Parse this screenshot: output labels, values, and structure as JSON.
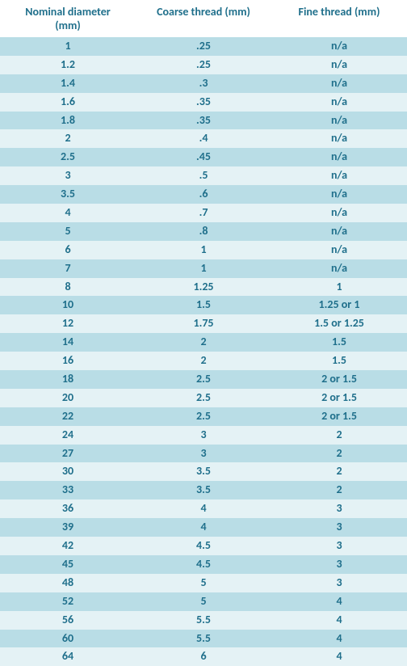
{
  "colors": {
    "text": "#1f6f8b",
    "band_dark": "#b9dde6",
    "band_light": "#e4f2f5",
    "background": "#ffffff"
  },
  "table": {
    "columns": [
      {
        "label_line1": "Nominal diameter",
        "label_line2": "(mm)"
      },
      {
        "label_line1": "Coarse thread (mm)",
        "label_line2": ""
      },
      {
        "label_line1": "Fine thread (mm)",
        "label_line2": ""
      }
    ],
    "rows": [
      {
        "nominal": "1",
        "coarse": ".25",
        "fine": "n/a"
      },
      {
        "nominal": "1.2",
        "coarse": ".25",
        "fine": "n/a"
      },
      {
        "nominal": "1.4",
        "coarse": ".3",
        "fine": "n/a"
      },
      {
        "nominal": "1.6",
        "coarse": ".35",
        "fine": "n/a"
      },
      {
        "nominal": "1.8",
        "coarse": ".35",
        "fine": "n/a"
      },
      {
        "nominal": "2",
        "coarse": ".4",
        "fine": "n/a"
      },
      {
        "nominal": "2.5",
        "coarse": ".45",
        "fine": "n/a"
      },
      {
        "nominal": "3",
        "coarse": ".5",
        "fine": "n/a"
      },
      {
        "nominal": "3.5",
        "coarse": ".6",
        "fine": "n/a"
      },
      {
        "nominal": "4",
        "coarse": ".7",
        "fine": "n/a"
      },
      {
        "nominal": "5",
        "coarse": ".8",
        "fine": "n/a"
      },
      {
        "nominal": "6",
        "coarse": "1",
        "fine": "n/a"
      },
      {
        "nominal": "7",
        "coarse": "1",
        "fine": "n/a"
      },
      {
        "nominal": "8",
        "coarse": "1.25",
        "fine": "1"
      },
      {
        "nominal": "10",
        "coarse": "1.5",
        "fine": "1.25 or 1"
      },
      {
        "nominal": "12",
        "coarse": "1.75",
        "fine": "1.5 or 1.25"
      },
      {
        "nominal": "14",
        "coarse": "2",
        "fine": "1.5"
      },
      {
        "nominal": "16",
        "coarse": "2",
        "fine": "1.5"
      },
      {
        "nominal": "18",
        "coarse": "2.5",
        "fine": "2 or 1.5"
      },
      {
        "nominal": "20",
        "coarse": "2.5",
        "fine": "2 or 1.5"
      },
      {
        "nominal": "22",
        "coarse": "2.5",
        "fine": "2 or 1.5"
      },
      {
        "nominal": "24",
        "coarse": "3",
        "fine": "2"
      },
      {
        "nominal": "27",
        "coarse": "3",
        "fine": "2"
      },
      {
        "nominal": "30",
        "coarse": "3.5",
        "fine": "2"
      },
      {
        "nominal": "33",
        "coarse": "3.5",
        "fine": "2"
      },
      {
        "nominal": "36",
        "coarse": "4",
        "fine": "3"
      },
      {
        "nominal": "39",
        "coarse": "4",
        "fine": "3"
      },
      {
        "nominal": "42",
        "coarse": "4.5",
        "fine": "3"
      },
      {
        "nominal": "45",
        "coarse": "4.5",
        "fine": "3"
      },
      {
        "nominal": "48",
        "coarse": "5",
        "fine": "3"
      },
      {
        "nominal": "52",
        "coarse": "5",
        "fine": "4"
      },
      {
        "nominal": "56",
        "coarse": "5.5",
        "fine": "4"
      },
      {
        "nominal": "60",
        "coarse": "5.5",
        "fine": "4"
      },
      {
        "nominal": "64",
        "coarse": "6",
        "fine": "4"
      }
    ]
  }
}
